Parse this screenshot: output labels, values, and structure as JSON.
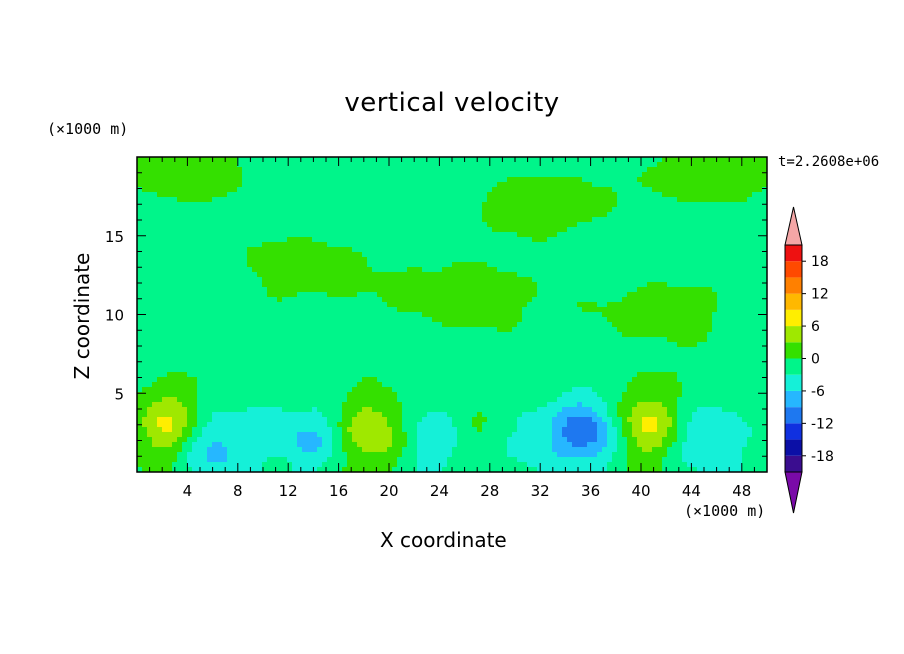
{
  "chart_data": {
    "type": "heatmap",
    "title": "vertical velocity",
    "xlabel": "X coordinate",
    "ylabel": "Z coordinate",
    "x_unit": "(×1000 m)",
    "y_unit": "(×1000 m)",
    "time_label": "t=2.2608e+06",
    "xlim": [
      0,
      50
    ],
    "ylim": [
      0,
      20
    ],
    "x_ticks": [
      4,
      8,
      12,
      16,
      20,
      24,
      28,
      32,
      36,
      40,
      44,
      48
    ],
    "y_ticks": [
      5,
      10,
      15
    ],
    "colorbar": {
      "levels": [
        -21,
        -18,
        -15,
        -12,
        -9,
        -6,
        -3,
        0,
        3,
        6,
        9,
        12,
        15,
        18,
        21
      ],
      "tick_labels": [
        -18,
        -12,
        -6,
        0,
        6,
        12,
        18
      ],
      "colors": [
        "#7a0aa8",
        "#3a0d8f",
        "#0b0fa6",
        "#1030e0",
        "#1e78f0",
        "#26b7ff",
        "#15f0d8",
        "#00f58a",
        "#34e000",
        "#9fe800",
        "#ffee00",
        "#ffb800",
        "#ff8000",
        "#ff4a00",
        "#ee1111",
        "#f4a6a6"
      ],
      "extend": "both"
    },
    "features": [
      {
        "x": 2.5,
        "z": 3.0,
        "w": 7.5
      },
      {
        "x": 18.5,
        "z": 2.5,
        "w": 7.0
      },
      {
        "x": 40.5,
        "z": 3.0,
        "w": 7.5
      },
      {
        "x": 26.0,
        "z": 2.0,
        "w": 3.0
      },
      {
        "x": 6.0,
        "z": 1.5,
        "w": -6.0
      },
      {
        "x": 14.0,
        "z": 2.0,
        "w": -5.0
      },
      {
        "x": 24.0,
        "z": 2.0,
        "w": -6.0
      },
      {
        "x": 35.5,
        "z": 2.5,
        "w": -10.0
      },
      {
        "x": 45.5,
        "z": 2.0,
        "w": -6.0
      },
      {
        "x": 10.0,
        "z": 2.5,
        "w": -3.0
      },
      {
        "x": 31.0,
        "z": 2.0,
        "w": -3.0
      }
    ],
    "background_w": -1.0,
    "positive_regions": [
      {
        "x": 13.0,
        "z": 13.0,
        "w": 1.5
      },
      {
        "x": 26.0,
        "z": 11.0,
        "w": 1.5
      },
      {
        "x": 42.0,
        "z": 10.0,
        "w": 1.5
      },
      {
        "x": 4.0,
        "z": 19.0,
        "w": 1.5
      },
      {
        "x": 32.0,
        "z": 17.0,
        "w": 1.5
      },
      {
        "x": 46.0,
        "z": 19.0,
        "w": 1.5
      }
    ]
  }
}
